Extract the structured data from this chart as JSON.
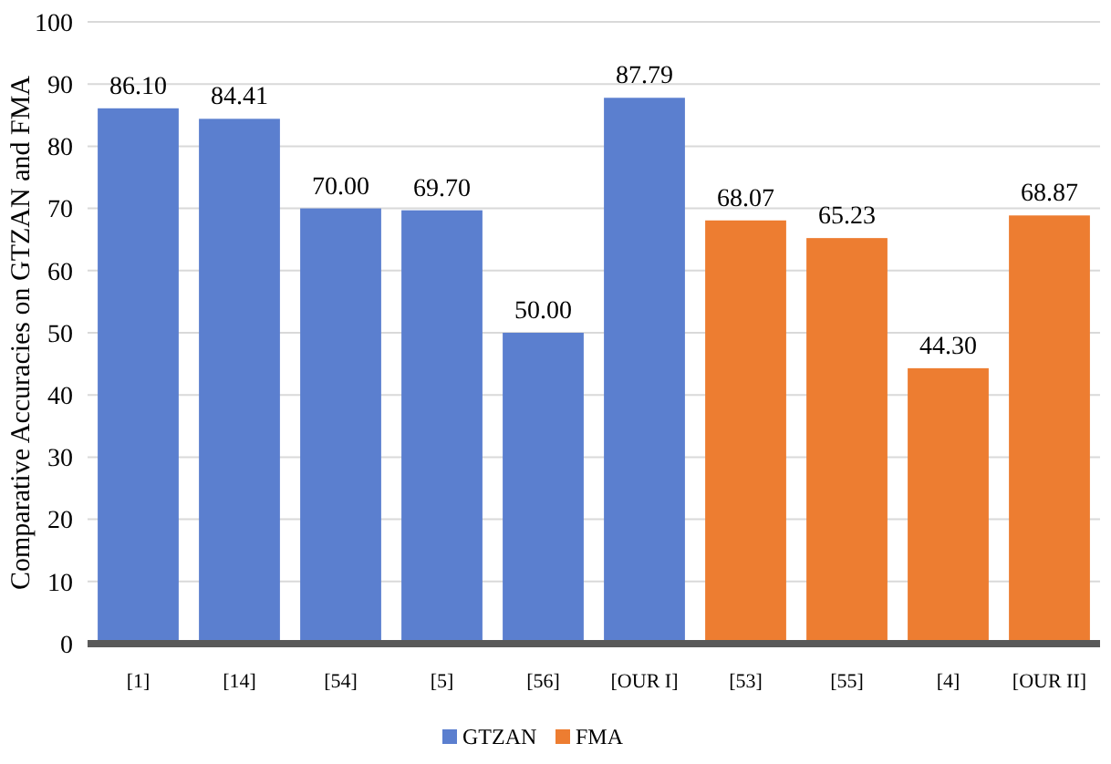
{
  "chart_data": {
    "type": "bar",
    "ylabel": "Comparative Accuracies on GTZAN and FMA",
    "categories": [
      "[1]",
      "[14]",
      "[54]",
      "[5]",
      "[56]",
      "[OUR I]",
      "[53]",
      "[55]",
      "[4]",
      "[OUR II]"
    ],
    "series": [
      {
        "name": "GTZAN",
        "color": "#5b7fcf",
        "values": [
          86.1,
          84.41,
          70.0,
          69.7,
          50.0,
          87.79,
          null,
          null,
          null,
          null
        ],
        "value_labels": [
          "86.10",
          "84.41",
          "70.00",
          "69.70",
          "50.00",
          "87.79",
          null,
          null,
          null,
          null
        ]
      },
      {
        "name": "FMA",
        "color": "#ed7d31",
        "values": [
          null,
          null,
          null,
          null,
          null,
          null,
          68.07,
          65.23,
          44.3,
          68.87
        ],
        "value_labels": [
          null,
          null,
          null,
          null,
          null,
          null,
          "68.07",
          "65.23",
          "44.30",
          "68.87"
        ]
      }
    ],
    "ylim": [
      0,
      100
    ],
    "yticks": [
      0,
      10,
      20,
      30,
      40,
      50,
      60,
      70,
      80,
      90,
      100
    ],
    "grid": "y",
    "legend": "bottom"
  }
}
